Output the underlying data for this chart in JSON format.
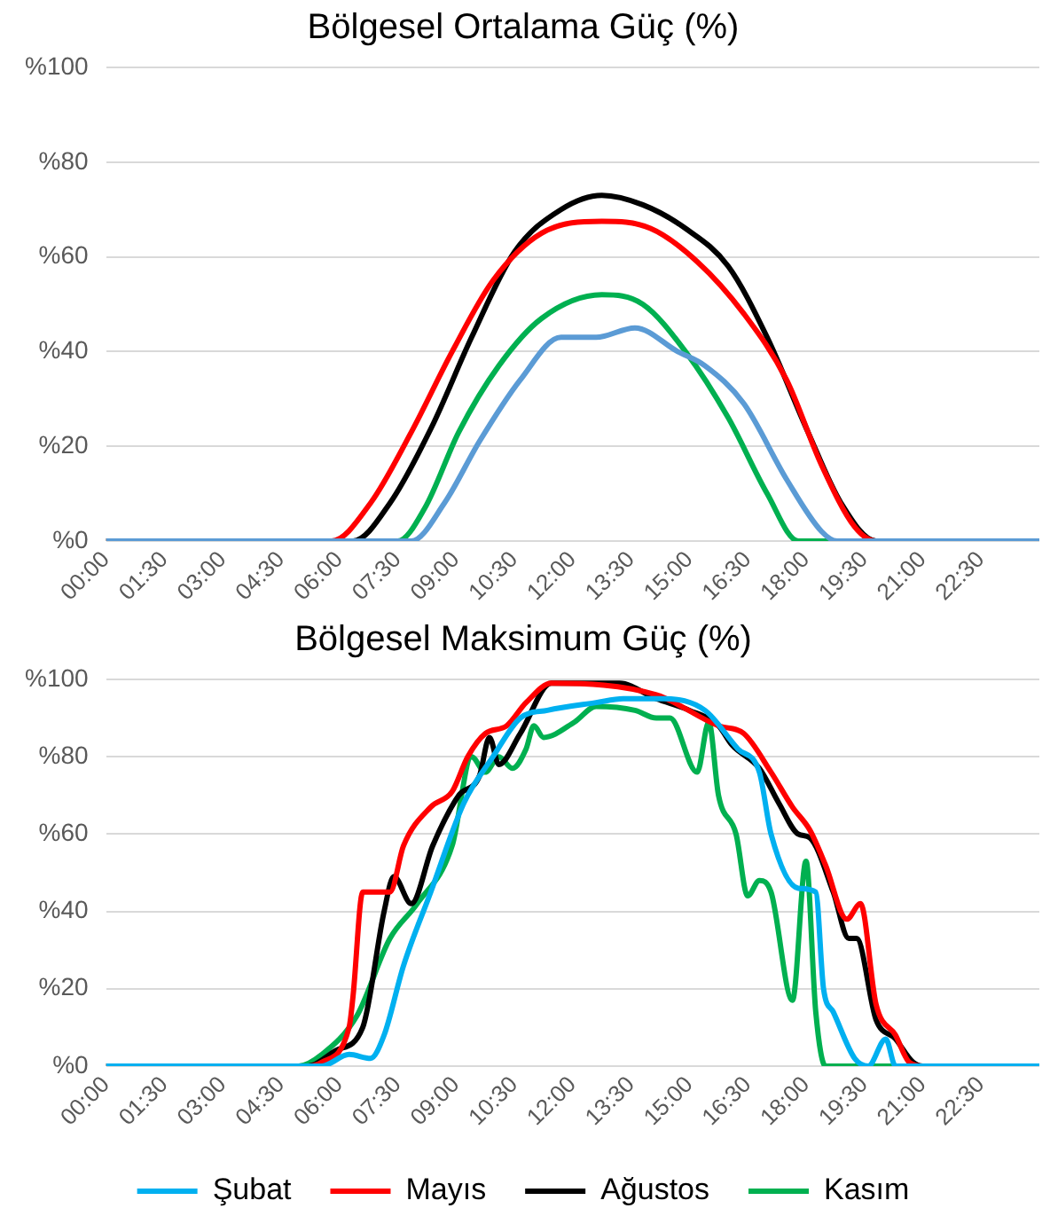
{
  "chart_data": [
    {
      "type": "line",
      "title": "Bölgesel Ortalama Güç (%)",
      "xlim": [
        0,
        24
      ],
      "ylim": [
        0,
        100
      ],
      "xticks": [
        {
          "value": 0,
          "label": "00:00"
        },
        {
          "value": 1.5,
          "label": "01:30"
        },
        {
          "value": 3,
          "label": "03:00"
        },
        {
          "value": 4.5,
          "label": "04:30"
        },
        {
          "value": 6,
          "label": "06:00"
        },
        {
          "value": 7.5,
          "label": "07:30"
        },
        {
          "value": 9,
          "label": "09:00"
        },
        {
          "value": 10.5,
          "label": "10:30"
        },
        {
          "value": 12,
          "label": "12:00"
        },
        {
          "value": 13.5,
          "label": "13:30"
        },
        {
          "value": 15,
          "label": "15:00"
        },
        {
          "value": 16.5,
          "label": "16:30"
        },
        {
          "value": 18,
          "label": "18:00"
        },
        {
          "value": 19.5,
          "label": "19:30"
        },
        {
          "value": 21,
          "label": "21:00"
        },
        {
          "value": 22.5,
          "label": "22:30"
        }
      ],
      "yticks": [
        {
          "value": 0,
          "label": "%0"
        },
        {
          "value": 20,
          "label": "%20"
        },
        {
          "value": 40,
          "label": "%40"
        },
        {
          "value": 60,
          "label": "%60"
        },
        {
          "value": 80,
          "label": "%80"
        },
        {
          "value": 100,
          "label": "%100"
        }
      ],
      "grid": "y",
      "legend": false,
      "marker": "none",
      "series": [
        {
          "color": "#5b9bd5",
          "x": [
            0,
            7.85,
            8.7,
            9.6,
            10.65,
            11.7,
            12.6,
            13.6,
            14.7,
            15.4,
            16.4,
            17.5,
            18.4,
            18.8,
            24
          ],
          "values": [
            0,
            0,
            8,
            21,
            34,
            43,
            43,
            45,
            40,
            37,
            29,
            13,
            2,
            0,
            0
          ]
        },
        {
          "color": "#ff0000",
          "x": [
            0,
            5.8,
            6.8,
            7.85,
            8.9,
            9.95,
            11.2,
            12.75,
            14,
            15.2,
            16.4,
            17.5,
            18.4,
            19.25,
            19.8,
            24
          ],
          "values": [
            0,
            0,
            8,
            23,
            40,
            55,
            65,
            67.5,
            66,
            59,
            48,
            34,
            16,
            3,
            0,
            0
          ]
        },
        {
          "color": "#000000",
          "x": [
            0,
            6.35,
            7.3,
            8.37,
            9.4,
            10.5,
            11.7,
            12.75,
            13.8,
            14.9,
            16,
            17,
            18.05,
            18.9,
            19.8,
            24
          ],
          "values": [
            0,
            0,
            8,
            24,
            43,
            61,
            70,
            73,
            71,
            66,
            58,
            43,
            23,
            8,
            0,
            0
          ]
        },
        {
          "color": "#00b050",
          "x": [
            0,
            7.5,
            8.2,
            9.07,
            10.1,
            11.2,
            12.75,
            13.8,
            14.9,
            16,
            17,
            17.8,
            24
          ],
          "values": [
            0,
            0,
            7,
            23,
            37,
            47,
            52,
            50,
            40,
            26,
            10,
            0,
            0
          ]
        }
      ]
    },
    {
      "type": "line",
      "title": "Bölgesel Maksimum Güç (%)",
      "xlim": [
        0,
        24
      ],
      "ylim": [
        0,
        100
      ],
      "xticks": [
        {
          "value": 0,
          "label": "00:00"
        },
        {
          "value": 1.5,
          "label": "01:30"
        },
        {
          "value": 3,
          "label": "03:00"
        },
        {
          "value": 4.5,
          "label": "04:30"
        },
        {
          "value": 6,
          "label": "06:00"
        },
        {
          "value": 7.5,
          "label": "07:30"
        },
        {
          "value": 9,
          "label": "09:00"
        },
        {
          "value": 10.5,
          "label": "10:30"
        },
        {
          "value": 12,
          "label": "12:00"
        },
        {
          "value": 13.5,
          "label": "13:30"
        },
        {
          "value": 15,
          "label": "15:00"
        },
        {
          "value": 16.5,
          "label": "16:30"
        },
        {
          "value": 18,
          "label": "18:00"
        },
        {
          "value": 19.5,
          "label": "19:30"
        },
        {
          "value": 21,
          "label": "21:00"
        },
        {
          "value": 22.5,
          "label": "22:30"
        }
      ],
      "yticks": [
        {
          "value": 0,
          "label": "%0"
        },
        {
          "value": 20,
          "label": "%20"
        },
        {
          "value": 40,
          "label": "%40"
        },
        {
          "value": 60,
          "label": "%60"
        },
        {
          "value": 80,
          "label": "%80"
        },
        {
          "value": 100,
          "label": "%100"
        }
      ],
      "grid": "y",
      "legend": "bottom",
      "marker": "none",
      "series": [
        {
          "name": "Şubat",
          "color": "#00b0f0",
          "x": [
            0,
            5.55,
            6.25,
            6.8,
            7.15,
            7.65,
            8.35,
            9.2,
            9.95,
            10.65,
            11.35,
            12.6,
            13.3,
            14.35,
            15.4,
            16.25,
            16.8,
            17.1,
            17.8,
            18.25,
            18.45,
            18.7,
            19.25,
            19.6,
            20.05,
            20.3,
            24
          ],
          "values": [
            0,
            0,
            3,
            2,
            8,
            26,
            45,
            68,
            80,
            90,
            92,
            94,
            95,
            95,
            92,
            82,
            76,
            60,
            46,
            45,
            20,
            14,
            2,
            0,
            7,
            0,
            0
          ]
        },
        {
          "name": "Mayıs",
          "color": "#ff0000",
          "x": [
            0,
            5.2,
            5.55,
            6.25,
            6.35,
            6.6,
            7.3,
            7.65,
            8.35,
            8.9,
            9.3,
            9.75,
            10.3,
            10.8,
            11.45,
            14.15,
            15.75,
            16.4,
            17.1,
            17.65,
            18.1,
            18.5,
            19.05,
            19.4,
            19.8,
            20.3,
            20.65,
            21,
            24
          ],
          "values": [
            0,
            0,
            1,
            10,
            18,
            45,
            45,
            57,
            67,
            71,
            80,
            86,
            88,
            94,
            99,
            96,
            88,
            86,
            76,
            67,
            61,
            52,
            38,
            42,
            16,
            8,
            1,
            0,
            0
          ]
        },
        {
          "name": "Ağustos",
          "color": "#000000",
          "x": [
            0,
            5.2,
            5.9,
            6.6,
            7.15,
            7.4,
            7.85,
            8.4,
            9.07,
            9.6,
            9.86,
            10.1,
            10.65,
            11.45,
            12.2,
            13.2,
            14.15,
            15,
            15.75,
            16.1,
            16.8,
            17.3,
            17.8,
            18.1,
            18.7,
            19.1,
            19.3,
            19.8,
            20.3,
            20.75,
            21,
            24
          ],
          "values": [
            0,
            0,
            4,
            10,
            40,
            49,
            42,
            57,
            70,
            75,
            85,
            78,
            86,
            99,
            99,
            99,
            95,
            92,
            88,
            83,
            77,
            68,
            60,
            59,
            45,
            33,
            33,
            12,
            7,
            1,
            0,
            0
          ]
        },
        {
          "name": "Kasım",
          "color": "#00b050",
          "x": [
            0,
            4.95,
            5.55,
            6.45,
            7.3,
            8,
            8.9,
            9.4,
            9.75,
            10.1,
            10.45,
            10.8,
            11,
            11.25,
            12.05,
            12.6,
            13.6,
            14.15,
            14.5,
            15.2,
            15.5,
            15.75,
            16.2,
            16.5,
            16.8,
            17.1,
            17.65,
            18,
            18.25,
            18.5,
            24
          ],
          "values": [
            0,
            0,
            3,
            13,
            33,
            42,
            57,
            80,
            76,
            80,
            77,
            82,
            88,
            85,
            89,
            93,
            92,
            90,
            90,
            76,
            89,
            70,
            60,
            44,
            48,
            45,
            17,
            53,
            14,
            0,
            0
          ]
        }
      ]
    }
  ]
}
